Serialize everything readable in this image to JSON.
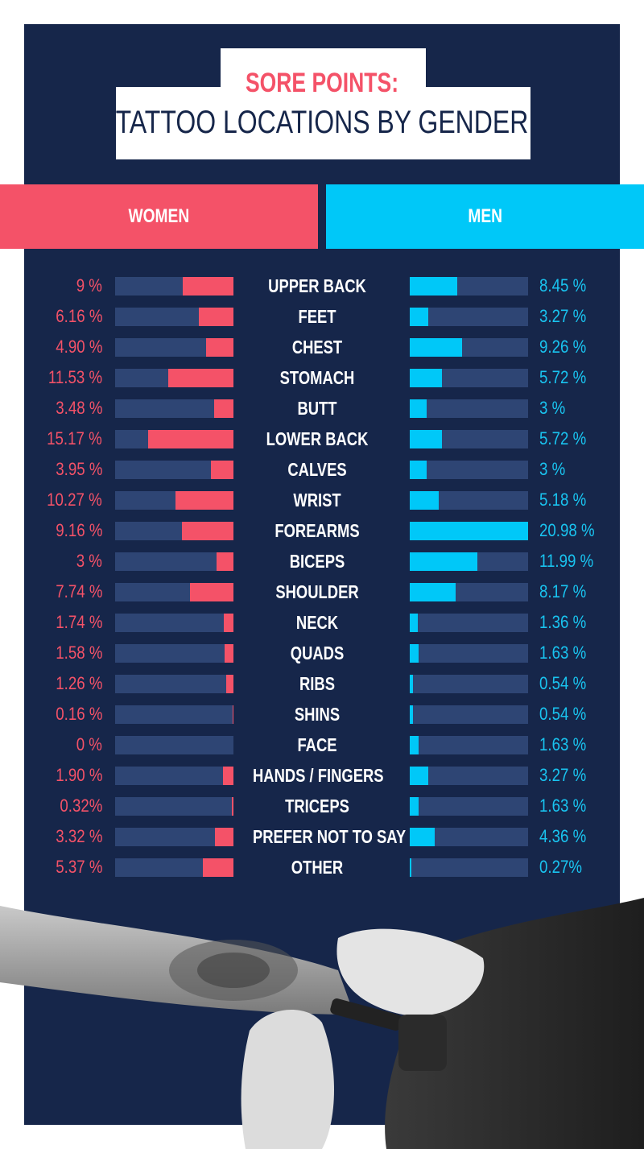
{
  "chart_data": {
    "type": "bar",
    "title": "SORE POINTS:",
    "subtitle": "TATTOO LOCATIONS BY GENDER",
    "legend": [
      "WOMEN",
      "MEN"
    ],
    "scale_max": 21,
    "colors": {
      "women": "#f45268",
      "men": "#00c8f8",
      "track": "#2e4574",
      "background": "#16264a"
    },
    "categories": [
      "UPPER BACK",
      "FEET",
      "CHEST",
      "STOMACH",
      "BUTT",
      "LOWER BACK",
      "CALVES",
      "WRIST",
      "FOREARMS",
      "BICEPS",
      "SHOULDER",
      "NECK",
      "QUADS",
      "RIBS",
      "SHINS",
      "FACE",
      "HANDS / FINGERS",
      "TRICEPS",
      "PREFER NOT TO SAY",
      "OTHER"
    ],
    "series": [
      {
        "name": "WOMEN",
        "values": [
          9,
          6.16,
          4.9,
          11.53,
          3.48,
          15.17,
          3.95,
          10.27,
          9.16,
          3,
          7.74,
          1.74,
          1.58,
          1.26,
          0.16,
          0,
          1.9,
          0.32,
          3.32,
          5.37
        ],
        "labels": [
          "9 %",
          "6.16 %",
          "4.90 %",
          "11.53 %",
          "3.48 %",
          "15.17 %",
          "3.95 %",
          "10.27 %",
          "9.16 %",
          "3 %",
          "7.74 %",
          "1.74 %",
          "1.58 %",
          "1.26 %",
          "0.16 %",
          "0 %",
          "1.90 %",
          "0.32%",
          "3.32 %",
          "5.37 %"
        ]
      },
      {
        "name": "MEN",
        "values": [
          8.45,
          3.27,
          9.26,
          5.72,
          3,
          5.72,
          3,
          5.18,
          20.98,
          11.99,
          8.17,
          1.36,
          1.63,
          0.54,
          0.54,
          1.63,
          3.27,
          1.63,
          4.36,
          0.27
        ],
        "labels": [
          "8.45 %",
          "3.27 %",
          "9.26 %",
          "5.72 %",
          "3 %",
          "5.72 %",
          "3 %",
          "5.18 %",
          "20.98 %",
          "11.99 %",
          "8.17 %",
          "1.36 %",
          "1.63 %",
          "0.54 %",
          "0.54 %",
          "1.63 %",
          "3.27 %",
          "1.63 %",
          "4.36 %",
          "0.27%"
        ]
      }
    ]
  }
}
